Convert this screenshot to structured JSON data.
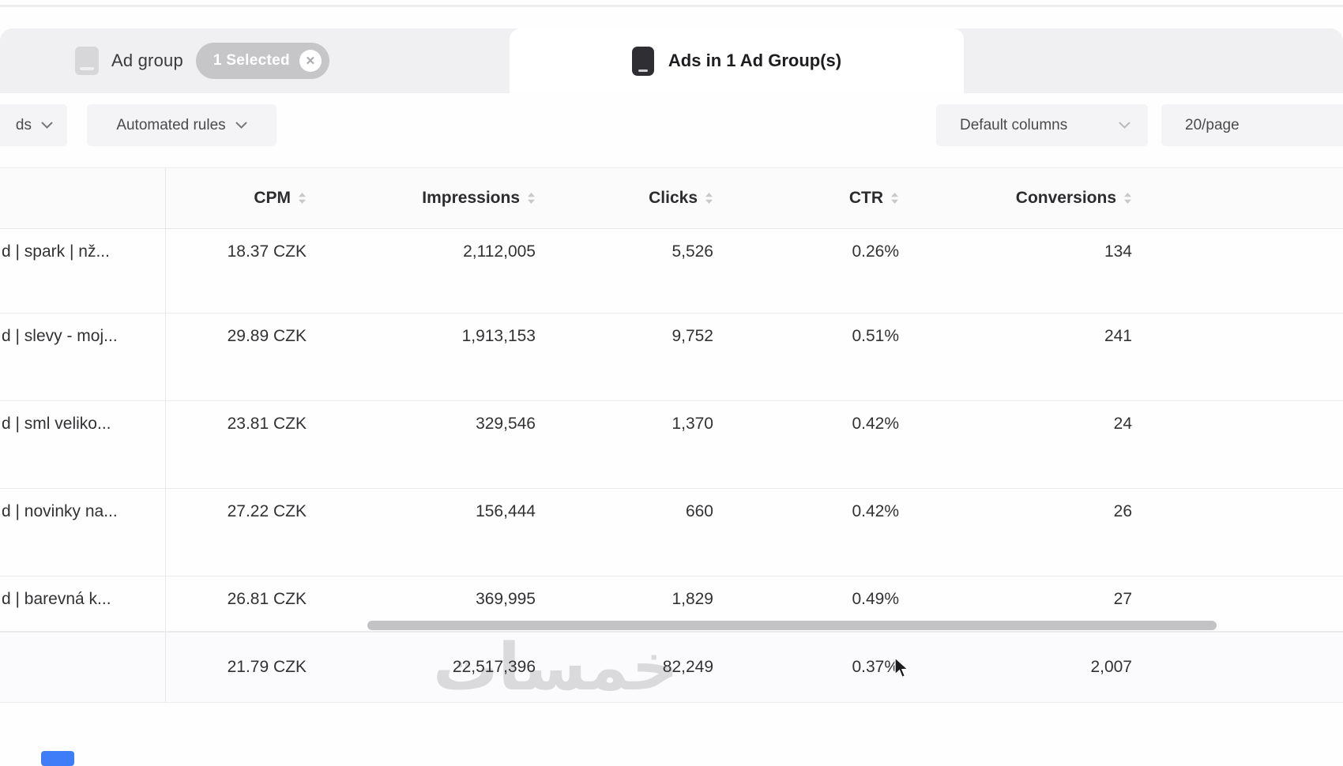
{
  "tabs": {
    "ad_group": {
      "label": "Ad group",
      "badge": "1 Selected",
      "clear_icon": "✕"
    },
    "ads": {
      "label": "Ads in 1 Ad Group(s)"
    }
  },
  "toolbar": {
    "cutoff_button": "ds",
    "automated_rules": "Automated rules",
    "default_columns": "Default columns",
    "page_size": "20/page"
  },
  "table": {
    "columns": [
      {
        "key": "cpm",
        "label": "CPM"
      },
      {
        "key": "impressions",
        "label": "Impressions"
      },
      {
        "key": "clicks",
        "label": "Clicks"
      },
      {
        "key": "ctr",
        "label": "CTR"
      },
      {
        "key": "conversions",
        "label": "Conversions"
      }
    ],
    "rows": [
      {
        "name": "d | spark | nž...",
        "cpm": "18.37 CZK",
        "impressions": "2,112,005",
        "clicks": "5,526",
        "ctr": "0.26%",
        "conversions": "134"
      },
      {
        "name": "d | slevy - moj...",
        "cpm": "29.89 CZK",
        "impressions": "1,913,153",
        "clicks": "9,752",
        "ctr": "0.51%",
        "conversions": "241"
      },
      {
        "name": "d | sml veliko...",
        "cpm": "23.81 CZK",
        "impressions": "329,546",
        "clicks": "1,370",
        "ctr": "0.42%",
        "conversions": "24"
      },
      {
        "name": "d | novinky na...",
        "cpm": "27.22 CZK",
        "impressions": "156,444",
        "clicks": "660",
        "ctr": "0.42%",
        "conversions": "26"
      },
      {
        "name": "d | barevná k...",
        "cpm": "26.81 CZK",
        "impressions": "369,995",
        "clicks": "1,829",
        "ctr": "0.49%",
        "conversions": "27"
      }
    ],
    "totals": {
      "cpm": "21.79 CZK",
      "impressions": "22,517,396",
      "clicks": "82,249",
      "ctr": "0.37%",
      "conversions": "2,007"
    }
  },
  "watermark": "خمسات",
  "colors": {
    "accent_blue": "#3f7cf7",
    "badge_gray": "#c6c6c9",
    "scrollbar_gray": "#c3c3c6"
  }
}
